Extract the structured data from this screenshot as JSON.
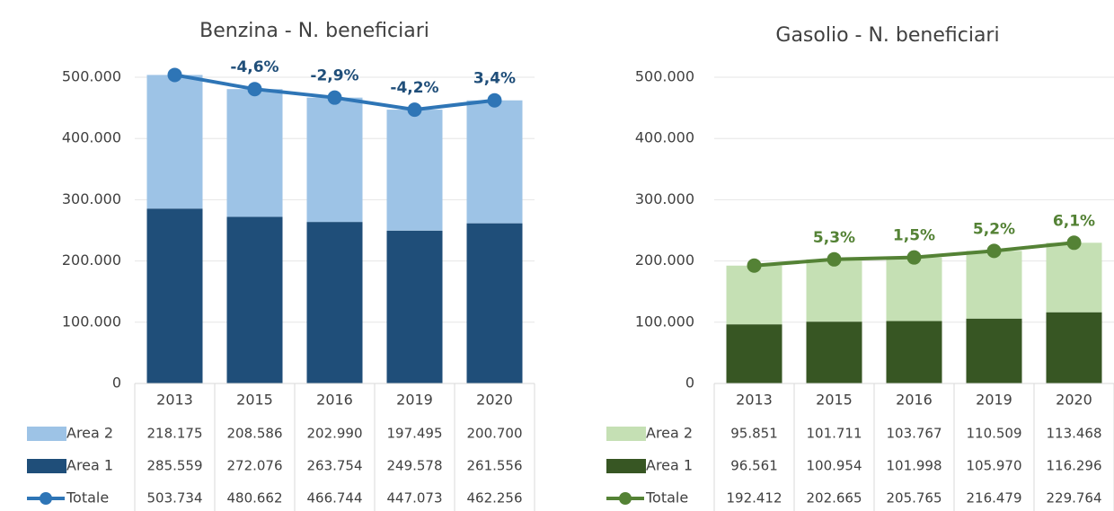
{
  "chart_data": [
    {
      "type": "bar",
      "title": "Benzina - N. beneficiari",
      "categories": [
        "2013",
        "2015",
        "2016",
        "2019",
        "2020"
      ],
      "series": [
        {
          "name": "Area 2",
          "color": "#9dc3e6",
          "values": [
            218175,
            208586,
            202990,
            197495,
            200700
          ],
          "value_labels": [
            "218.175",
            "208.586",
            "202.990",
            "197.495",
            "200.700"
          ]
        },
        {
          "name": "Area 1",
          "color": "#1f4e79",
          "values": [
            285559,
            272076,
            263754,
            249578,
            261556
          ],
          "value_labels": [
            "285.559",
            "272.076",
            "263.754",
            "249.578",
            "261.556"
          ]
        },
        {
          "name": "Totale",
          "type": "line",
          "color": "#2e75b6",
          "values": [
            503734,
            480662,
            466744,
            447073,
            462256
          ],
          "value_labels": [
            "503.734",
            "480.662",
            "466.744",
            "447.073",
            "462.256"
          ],
          "change_labels": [
            null,
            "-4,6%",
            "-2,9%",
            "-4,2%",
            "3,4%"
          ],
          "label_color": "#1f4e79"
        }
      ],
      "ylim": [
        0,
        500000
      ],
      "yticks": [
        0,
        {
          "value": 100000,
          "label": "100.000"
        },
        {
          "value": 200000,
          "label": "200.000"
        },
        {
          "value": 300000,
          "label": "300.000"
        },
        {
          "value": 400000,
          "label": "400.000"
        },
        {
          "value": 500000,
          "label": "500.000"
        }
      ],
      "grid": true
    },
    {
      "type": "bar",
      "title": "Gasolio - N. beneficiari",
      "categories": [
        "2013",
        "2015",
        "2016",
        "2019",
        "2020"
      ],
      "series": [
        {
          "name": "Area 2",
          "color": "#c5e0b4",
          "values": [
            95851,
            101711,
            103767,
            110509,
            113468
          ],
          "value_labels": [
            "95.851",
            "101.711",
            "103.767",
            "110.509",
            "113.468"
          ]
        },
        {
          "name": "Area 1",
          "color": "#375623",
          "values": [
            96561,
            100954,
            101998,
            105970,
            116296
          ],
          "value_labels": [
            "96.561",
            "100.954",
            "101.998",
            "105.970",
            "116.296"
          ]
        },
        {
          "name": "Totale",
          "type": "line",
          "color": "#548235",
          "values": [
            192412,
            202665,
            205765,
            216479,
            229764
          ],
          "value_labels": [
            "192.412",
            "202.665",
            "205.765",
            "216.479",
            "229.764"
          ],
          "change_labels": [
            null,
            "5,3%",
            "1,5%",
            "5,2%",
            "6,1%"
          ],
          "label_color": "#548235"
        }
      ],
      "ylim": [
        0,
        500000
      ],
      "yticks": [
        0,
        {
          "value": 100000,
          "label": "100.000"
        },
        {
          "value": 200000,
          "label": "200.000"
        },
        {
          "value": 300000,
          "label": "300.000"
        },
        {
          "value": 400000,
          "label": "400.000"
        },
        {
          "value": 500000,
          "label": "500.000"
        }
      ],
      "grid": true
    }
  ]
}
